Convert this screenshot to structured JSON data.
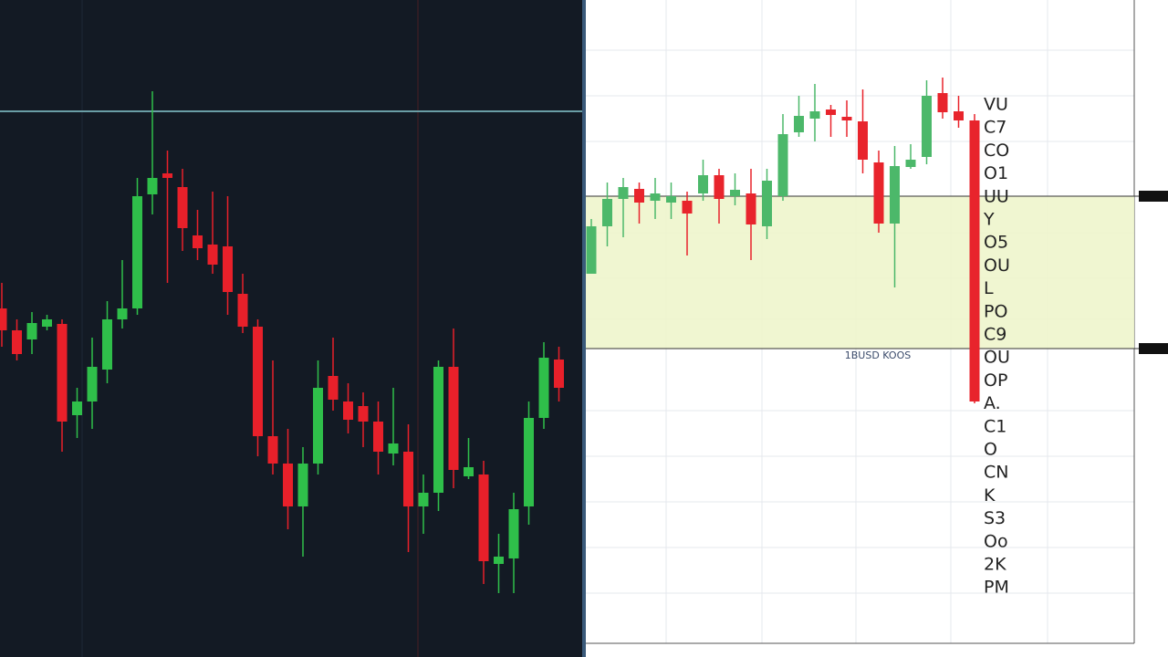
{
  "chart_data": [
    {
      "type": "candlestick",
      "up_color": "#2fbf4a",
      "down_color": "#e8202a",
      "ylim": [
        0,
        720
      ],
      "open": [
        382,
        358,
        348,
        362,
        365,
        265,
        280,
        315,
        370,
        382,
        507,
        530,
        515,
        462,
        452,
        450,
        398,
        362,
        242,
        212,
        165,
        212,
        308,
        280,
        275,
        258,
        223,
        225,
        165,
        180,
        318,
        198,
        200,
        102,
        108,
        165,
        262,
        326
      ],
      "close": [
        358,
        332,
        366,
        370,
        258,
        280,
        318,
        370,
        382,
        505,
        525,
        525,
        470,
        448,
        430,
        400,
        362,
        242,
        212,
        165,
        212,
        295,
        282,
        260,
        258,
        225,
        234,
        165,
        180,
        318,
        205,
        208,
        105,
        110,
        162,
        262,
        328,
        295
      ],
      "high": [
        410,
        370,
        378,
        375,
        370,
        295,
        350,
        390,
        435,
        525,
        620,
        555,
        535,
        490,
        510,
        505,
        420,
        370,
        325,
        250,
        230,
        325,
        350,
        300,
        290,
        280,
        295,
        255,
        200,
        325,
        360,
        240,
        215,
        135,
        180,
        280,
        345,
        340
      ],
      "low": [
        340,
        325,
        332,
        358,
        225,
        240,
        250,
        300,
        360,
        375,
        485,
        410,
        445,
        435,
        420,
        375,
        355,
        220,
        200,
        140,
        110,
        200,
        270,
        245,
        230,
        200,
        210,
        115,
        135,
        160,
        185,
        195,
        80,
        70,
        70,
        145,
        250,
        280
      ]
    },
    {
      "type": "candlestick",
      "up_color": "#4cb86a",
      "down_color": "#e8242c",
      "ylim": [
        0,
        720
      ],
      "zone": [
        338,
        505
      ],
      "zone_label": "1BUSD KOOS",
      "annotations": [
        "VU",
        "C7",
        "CO",
        "O1",
        "UU",
        "Y",
        "O5",
        "OU",
        "L",
        "PO",
        "C9",
        "OU",
        "OP",
        "A.",
        "C1",
        "O",
        "CN",
        "K",
        "S3",
        "Oo",
        "2K",
        "PM"
      ],
      "open": [
        420,
        472,
        502,
        513,
        500,
        498,
        500,
        508,
        528,
        505,
        508,
        472,
        505,
        575,
        590,
        600,
        592,
        587,
        542,
        475,
        537,
        548,
        618,
        598,
        588
      ],
      "close": [
        472,
        502,
        515,
        498,
        508,
        505,
        486,
        528,
        502,
        512,
        474,
        522,
        573,
        593,
        598,
        594,
        588,
        545,
        475,
        538,
        545,
        615,
        597,
        588,
        280
      ],
      "high": [
        480,
        520,
        525,
        520,
        525,
        520,
        510,
        545,
        535,
        530,
        535,
        535,
        595,
        615,
        628,
        605,
        610,
        622,
        555,
        560,
        562,
        632,
        635,
        615,
        595
      ],
      "low": [
        420,
        450,
        460,
        475,
        480,
        480,
        440,
        500,
        475,
        495,
        435,
        458,
        500,
        570,
        565,
        570,
        570,
        530,
        465,
        405,
        535,
        540,
        590,
        580,
        278
      ]
    }
  ]
}
